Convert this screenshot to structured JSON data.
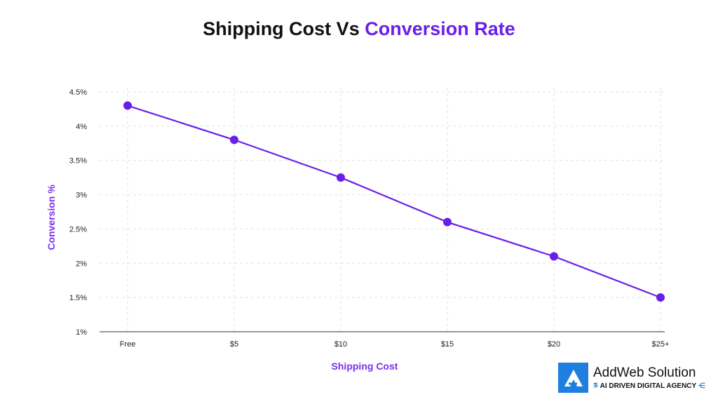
{
  "chart_data": {
    "type": "line",
    "title": {
      "part1": "Shipping Cost Vs ",
      "part2": "Conversion Rate"
    },
    "xlabel": "Shipping Cost",
    "ylabel": "Conversion %",
    "categories": [
      "Free",
      "$5",
      "$10",
      "$15",
      "$20",
      "$25+"
    ],
    "values": [
      4.3,
      3.8,
      3.25,
      2.6,
      2.1,
      1.5
    ],
    "ylim": [
      1,
      4.5
    ],
    "yticks": [
      {
        "v": 1,
        "label": "1%"
      },
      {
        "v": 1.5,
        "label": "1.5%"
      },
      {
        "v": 2,
        "label": "2%"
      },
      {
        "v": 2.5,
        "label": "2.5%"
      },
      {
        "v": 3,
        "label": "3%"
      },
      {
        "v": 3.5,
        "label": "3.5%"
      },
      {
        "v": 4,
        "label": "4%"
      },
      {
        "v": 4.5,
        "label": "4.5%"
      }
    ],
    "grid": true,
    "line_color": "#6a1fe8"
  },
  "logo": {
    "name": "AddWeb Solution",
    "tagline": "AI DRIVEN DIGITAL AGENCY"
  }
}
